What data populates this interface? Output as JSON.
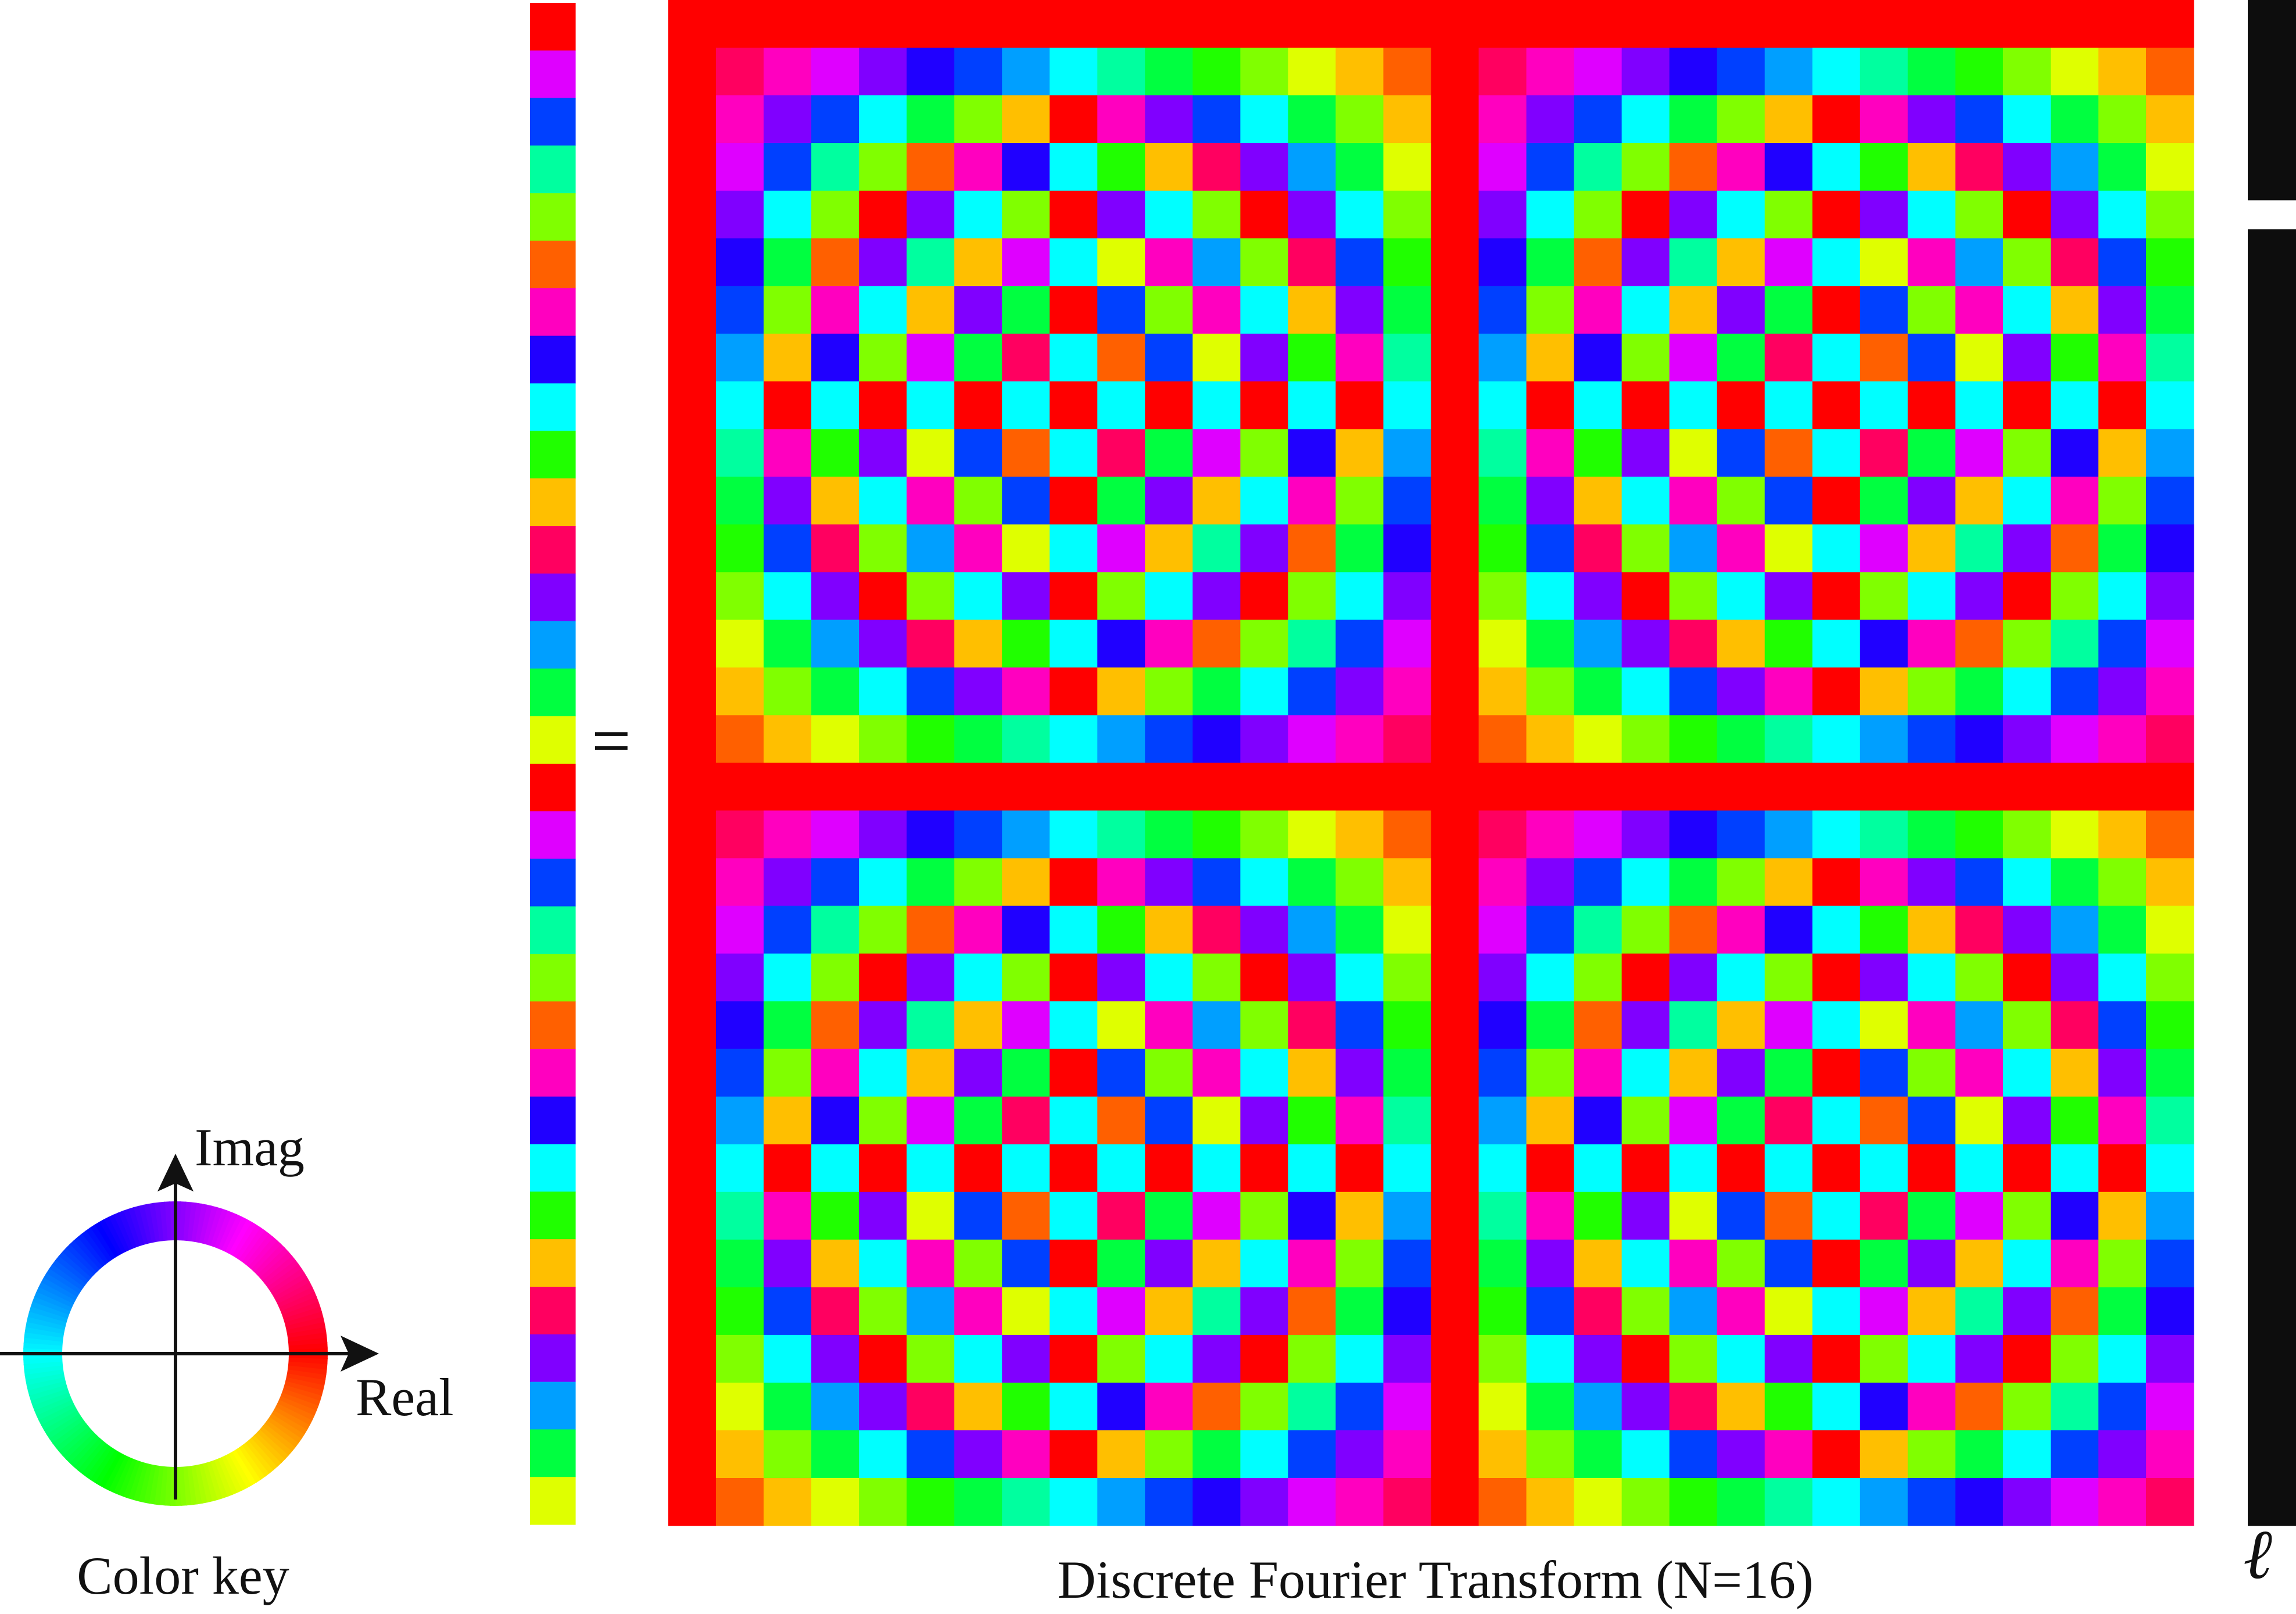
{
  "figure": {
    "caption": "Discrete Fourier Transform (N=16)",
    "equals_sign": "=",
    "index_symbol": "ℓ",
    "N": 16,
    "matrix_size": 32,
    "vector_highlight_row": 5,
    "colors": {
      "phase_zero": "#ff0000",
      "vector_background": "#0d0d0d",
      "vector_highlight": "#ffffff",
      "axes": "#111111"
    }
  },
  "color_key": {
    "caption": "Color key",
    "imag_label": "Imag",
    "real_label": "Real"
  }
}
